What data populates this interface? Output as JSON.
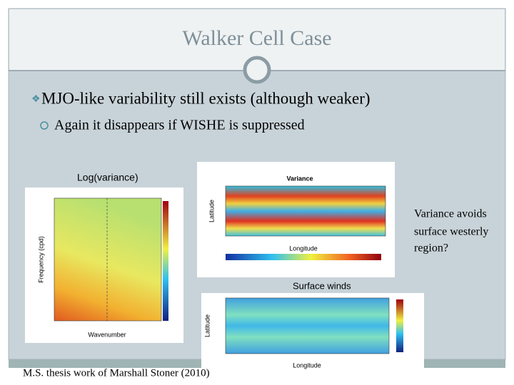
{
  "slide": {
    "title": "Walker Cell Case",
    "bullets": [
      "MJO-like variability still exists (although weaker)"
    ],
    "sub_bullets": [
      "Again it disappears if WISHE is suppressed"
    ],
    "figure_caption_left": "Log(variance)",
    "figure_caption_bottom": "Surface winds",
    "side_note": [
      "Variance avoids",
      "surface westerly",
      "region?"
    ],
    "footer": "M.S. thesis work of Marshall Stoner (2010)",
    "figures": {
      "spectrum": {
        "ylabel": "Frequency (cpd)",
        "xlabel": "Wavenumber"
      },
      "variance": {
        "title": "Variance",
        "ylabel": "Latitude",
        "xlabel": "Longitude"
      },
      "winds": {
        "ylabel": "Latitude",
        "xlabel": "Longitude"
      }
    }
  }
}
